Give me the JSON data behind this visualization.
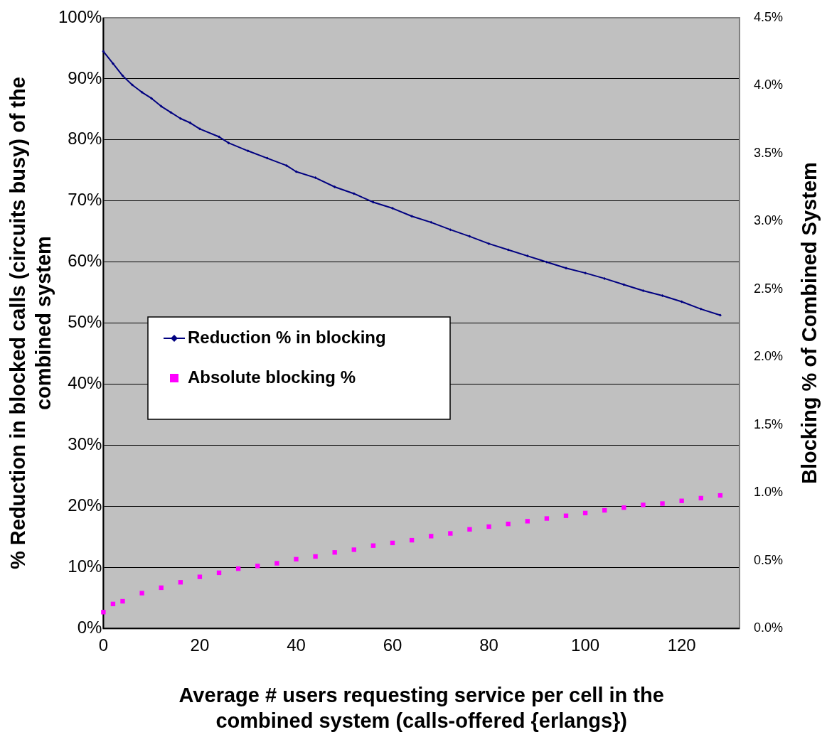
{
  "chart_data": {
    "type": "line",
    "xlabel": "Average # users requesting service per cell in the combined system (calls-offered {erlangs})",
    "ylabel": "% Reduction in blocked calls (circuits busy) of the combined system",
    "y2label": "Blocking % of Combined System",
    "xlim": [
      0,
      132
    ],
    "xticks": [
      0,
      20,
      40,
      60,
      80,
      100,
      120
    ],
    "ylim": [
      0,
      100
    ],
    "yticks": [
      {
        "value": 0,
        "label": "0%"
      },
      {
        "value": 10,
        "label": "10%"
      },
      {
        "value": 20,
        "label": "20%"
      },
      {
        "value": 30,
        "label": "30%"
      },
      {
        "value": 40,
        "label": "40%"
      },
      {
        "value": 50,
        "label": "50%"
      },
      {
        "value": 60,
        "label": "60%"
      },
      {
        "value": 70,
        "label": "70%"
      },
      {
        "value": 80,
        "label": "80%"
      },
      {
        "value": 90,
        "label": "90%"
      },
      {
        "value": 100,
        "label": "100%"
      }
    ],
    "y2lim": [
      0,
      4.5
    ],
    "y2ticks": [
      {
        "value": 0,
        "label": "0.0%"
      },
      {
        "value": 0.5,
        "label": "0.5%"
      },
      {
        "value": 1,
        "label": "1.0%"
      },
      {
        "value": 1.5,
        "label": "1.5%"
      },
      {
        "value": 2,
        "label": "2.0%"
      },
      {
        "value": 2.5,
        "label": "2.5%"
      },
      {
        "value": 3,
        "label": "3.0%"
      },
      {
        "value": 3.5,
        "label": "3.5%"
      },
      {
        "value": 4,
        "label": "4.0%"
      },
      {
        "value": 4.5,
        "label": "4.5%"
      }
    ],
    "grid": "y",
    "legend": "left",
    "series": [
      {
        "name": "Reduction % in blocking",
        "color": "#000080",
        "marker": "diamond",
        "x": [
          0,
          2,
          4,
          6,
          8,
          10,
          12,
          14,
          16,
          18,
          20,
          24,
          26,
          30,
          34,
          38,
          40,
          44,
          48,
          52,
          56,
          60,
          64,
          68,
          72,
          76,
          80,
          84,
          88,
          92,
          96,
          100,
          104,
          108,
          112,
          116,
          120,
          124,
          128
        ],
        "values": [
          94.5,
          92.5,
          90.5,
          89,
          87.8,
          86.8,
          85.5,
          84.5,
          83.5,
          82.8,
          81.8,
          80.5,
          79.5,
          78.2,
          77,
          75.8,
          74.8,
          73.8,
          72.3,
          71.2,
          69.8,
          68.8,
          67.5,
          66.5,
          65.3,
          64.2,
          63,
          62,
          61,
          60,
          59,
          58.2,
          57.3,
          56.3,
          55.3,
          54.5,
          53.5,
          52.3,
          51.3
        ]
      },
      {
        "name": "Absolute blocking %",
        "type": "scatter",
        "color": "#ff00ff",
        "marker": "square",
        "axis": "y2",
        "x": [
          0,
          2,
          4,
          8,
          12,
          16,
          20,
          24,
          28,
          32,
          36,
          40,
          44,
          48,
          52,
          56,
          60,
          64,
          68,
          72,
          76,
          80,
          84,
          88,
          92,
          96,
          100,
          104,
          108,
          112,
          116,
          120,
          124,
          128
        ],
        "values": [
          0.12,
          0.18,
          0.2,
          0.26,
          0.3,
          0.34,
          0.38,
          0.41,
          0.44,
          0.46,
          0.48,
          0.51,
          0.53,
          0.56,
          0.58,
          0.61,
          0.63,
          0.65,
          0.68,
          0.7,
          0.73,
          0.75,
          0.77,
          0.79,
          0.81,
          0.83,
          0.85,
          0.87,
          0.89,
          0.91,
          0.92,
          0.94,
          0.96,
          0.98
        ]
      }
    ]
  }
}
